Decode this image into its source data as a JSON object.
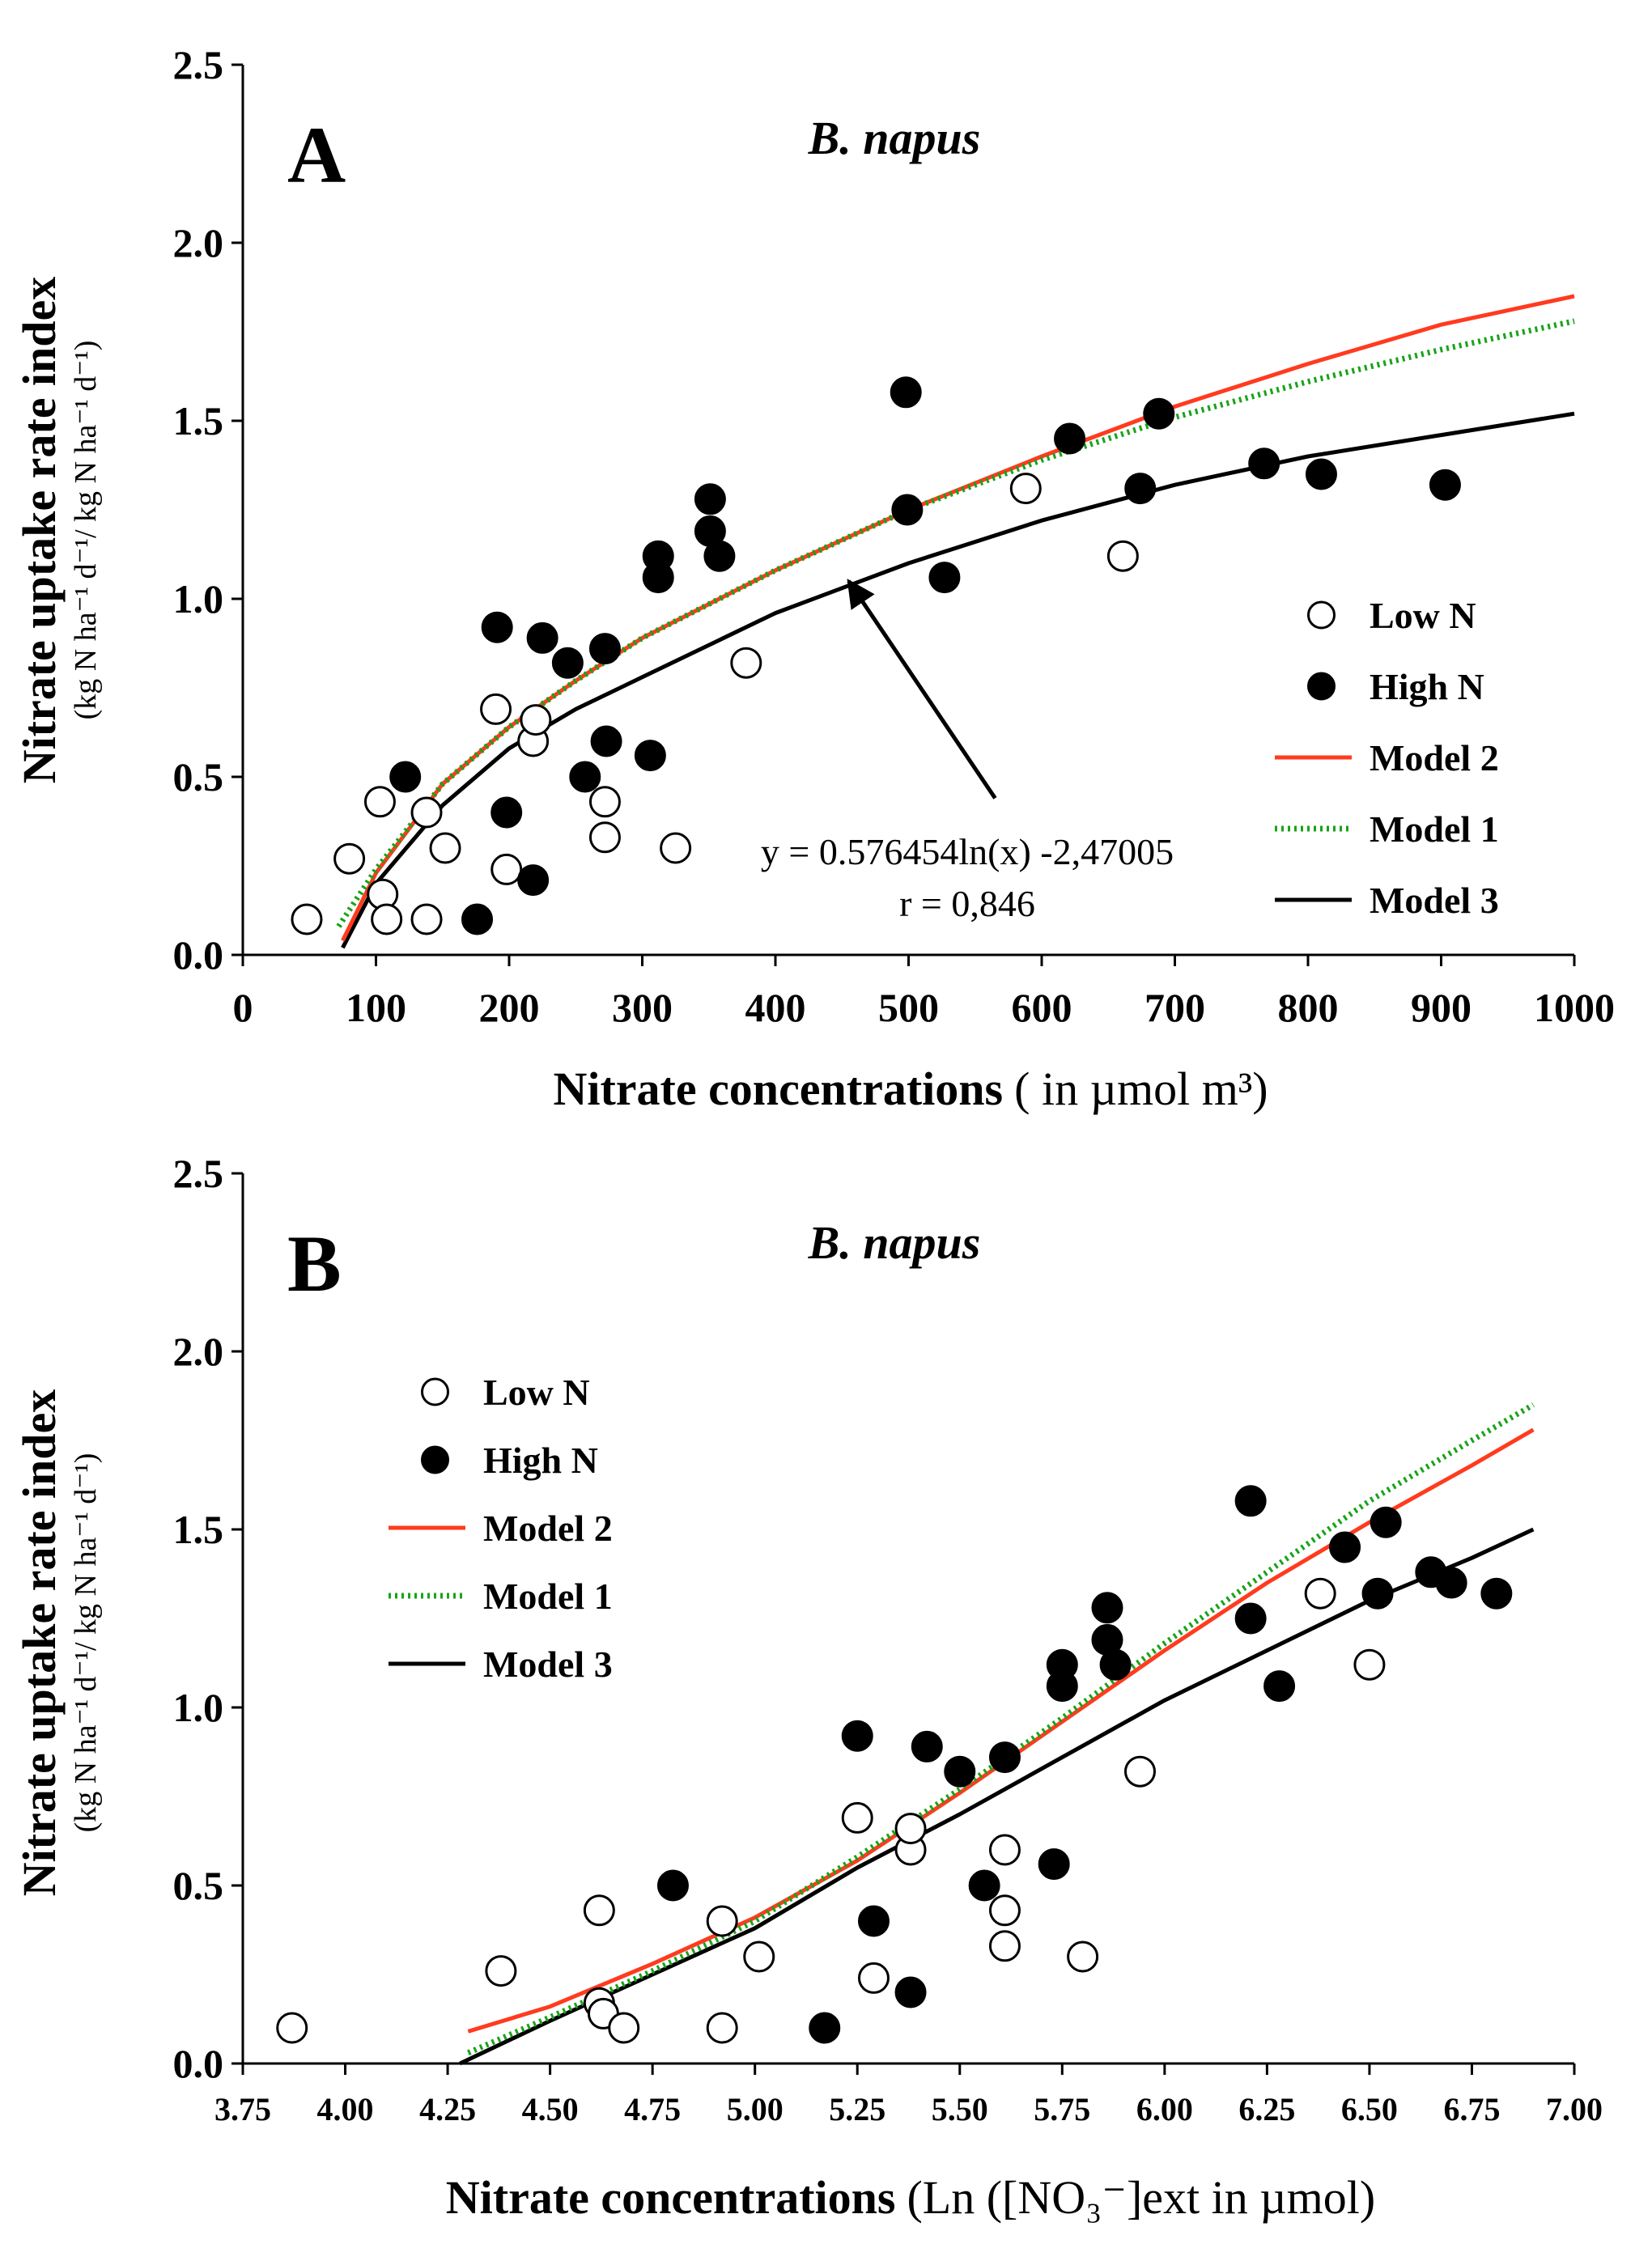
{
  "colors": {
    "model2": "#ff3b1f",
    "model1": "#19a319",
    "model3": "#000000",
    "high_marker": "#000000",
    "low_marker_fill": "#ffffff"
  },
  "chart_data": [
    {
      "type": "scatter",
      "panel_label": "A",
      "title": "B. napus",
      "xlabel": "Nitrate concentrations",
      "xlabel_units": "( in µmol m³)",
      "ylabel": "Nitrate uptake rate index",
      "ylabel_units": "(kg N ha⁻¹ d⁻¹/ kg N ha⁻¹ d⁻¹)",
      "xlim": [
        0,
        1000
      ],
      "ylim": [
        0,
        2.5
      ],
      "xticks": [
        0,
        100,
        200,
        300,
        400,
        500,
        600,
        700,
        800,
        900,
        1000
      ],
      "xtick_labels": [
        "0",
        "100",
        "200",
        "300",
        "400",
        "500",
        "600",
        "700",
        "800",
        "900",
        "1000"
      ],
      "yticks": [
        0,
        0.5,
        1.0,
        1.5,
        2.0,
        2.5
      ],
      "ytick_labels": [
        "0.0",
        "0.5",
        "1.0",
        "1.5",
        "2.0",
        "2.5"
      ],
      "legend_position": "center-right",
      "legend": [
        {
          "key": "low",
          "label": "Low N",
          "kind": "open-circle"
        },
        {
          "key": "high",
          "label": "High N",
          "kind": "filled-circle"
        },
        {
          "key": "model2",
          "label": "Model 2",
          "kind": "line"
        },
        {
          "key": "model1",
          "label": "Model 1",
          "kind": "dotted-line"
        },
        {
          "key": "model3",
          "label": "Model 3",
          "kind": "line"
        }
      ],
      "annotation": {
        "equation": "y = 0.576454ln(x) -2,47005",
        "r": "r = 0,846",
        "arrow_from": [
          565,
          0.44
        ],
        "arrow_to": [
          455,
          1.05
        ]
      },
      "series": [
        {
          "name": "Low N",
          "kind": "scatter",
          "style": "open",
          "points": [
            [
              48,
              0.1
            ],
            [
              80,
              0.27
            ],
            [
              103,
              0.43
            ],
            [
              105,
              0.17
            ],
            [
              108,
              0.1
            ],
            [
              138,
              0.4
            ],
            [
              138,
              0.1
            ],
            [
              152,
              0.3
            ],
            [
              190,
              0.69
            ],
            [
              198,
              0.24
            ],
            [
              218,
              0.6
            ],
            [
              220,
              0.66
            ],
            [
              272,
              0.43
            ],
            [
              272,
              0.33
            ],
            [
              325,
              0.3
            ],
            [
              378,
              0.82
            ],
            [
              588,
              1.31
            ],
            [
              661,
              1.12
            ]
          ]
        },
        {
          "name": "High N",
          "kind": "scatter",
          "style": "filled",
          "points": [
            [
              122,
              0.5
            ],
            [
              176,
              0.1
            ],
            [
              191,
              0.92
            ],
            [
              198,
              0.4
            ],
            [
              218,
              0.21
            ],
            [
              225,
              0.89
            ],
            [
              244,
              0.82
            ],
            [
              257,
              0.5
            ],
            [
              272,
              0.86
            ],
            [
              273,
              0.6
            ],
            [
              306,
              0.56
            ],
            [
              312,
              1.12
            ],
            [
              312,
              1.06
            ],
            [
              351,
              1.28
            ],
            [
              351,
              1.19
            ],
            [
              358,
              1.12
            ],
            [
              498,
              1.58
            ],
            [
              499,
              1.25
            ],
            [
              527,
              1.06
            ],
            [
              621,
              1.45
            ],
            [
              674,
              1.31
            ],
            [
              688,
              1.52
            ],
            [
              767,
              1.38
            ],
            [
              810,
              1.35
            ],
            [
              903,
              1.32
            ]
          ]
        },
        {
          "name": "Model 2",
          "kind": "line",
          "style": "solid",
          "points": [
            [
              75,
              0.04
            ],
            [
              100,
              0.23
            ],
            [
              150,
              0.48
            ],
            [
              200,
              0.64
            ],
            [
              250,
              0.77
            ],
            [
              300,
              0.89
            ],
            [
              400,
              1.08
            ],
            [
              500,
              1.25
            ],
            [
              600,
              1.4
            ],
            [
              700,
              1.54
            ],
            [
              800,
              1.66
            ],
            [
              900,
              1.77
            ],
            [
              1000,
              1.85
            ]
          ]
        },
        {
          "name": "Model 1",
          "kind": "line",
          "style": "dotted",
          "points": [
            [
              72,
              0.08
            ],
            [
              100,
              0.24
            ],
            [
              150,
              0.48
            ],
            [
              200,
              0.64
            ],
            [
              250,
              0.77
            ],
            [
              300,
              0.89
            ],
            [
              400,
              1.08
            ],
            [
              500,
              1.25
            ],
            [
              600,
              1.39
            ],
            [
              700,
              1.51
            ],
            [
              800,
              1.61
            ],
            [
              900,
              1.7
            ],
            [
              1000,
              1.78
            ]
          ]
        },
        {
          "name": "Model 3",
          "kind": "line",
          "style": "solid",
          "points": [
            [
              75,
              0.02
            ],
            [
              100,
              0.2
            ],
            [
              150,
              0.42
            ],
            [
              200,
              0.58
            ],
            [
              250,
              0.69
            ],
            [
              300,
              0.78
            ],
            [
              400,
              0.96
            ],
            [
              500,
              1.1
            ],
            [
              600,
              1.22
            ],
            [
              700,
              1.32
            ],
            [
              800,
              1.4
            ],
            [
              900,
              1.46
            ],
            [
              1000,
              1.52
            ]
          ]
        }
      ]
    },
    {
      "type": "scatter",
      "panel_label": "B",
      "title": "B. napus",
      "xlabel": "Nitrate concentrations",
      "xlabel_units": "(Ln ([NO₃⁻]ext in µmol)",
      "ylabel": "Nitrate uptake rate index",
      "ylabel_units": "(kg N ha⁻¹ d⁻¹/ kg N ha⁻¹ d⁻¹)",
      "xlim": [
        3.75,
        7.0
      ],
      "ylim": [
        0,
        2.5
      ],
      "xticks": [
        3.75,
        4.0,
        4.25,
        4.5,
        4.75,
        5.0,
        5.25,
        5.5,
        5.75,
        6.0,
        6.25,
        6.5,
        6.75,
        7.0
      ],
      "xtick_labels": [
        "3.75",
        "4.00",
        "4.25",
        "4.50",
        "4.75",
        "5.00",
        "5.25",
        "5.50",
        "5.75",
        "6.00",
        "6.25",
        "6.50",
        "6.75",
        "7.00"
      ],
      "yticks": [
        0,
        0.5,
        1.0,
        1.5,
        2.0,
        2.5
      ],
      "ytick_labels": [
        "0.0",
        "0.5",
        "1.0",
        "1.5",
        "2.0",
        "2.5"
      ],
      "legend_position": "upper-left",
      "legend": [
        {
          "key": "low",
          "label": "Low N",
          "kind": "open-circle"
        },
        {
          "key": "high",
          "label": "High N",
          "kind": "filled-circle"
        },
        {
          "key": "model2",
          "label": "Model 2",
          "kind": "line"
        },
        {
          "key": "model1",
          "label": "Model 1",
          "kind": "dotted-line"
        },
        {
          "key": "model3",
          "label": "Model 3",
          "kind": "line"
        }
      ],
      "series": [
        {
          "name": "Low N",
          "kind": "scatter",
          "style": "open",
          "points": [
            [
              3.87,
              0.1
            ],
            [
              4.38,
              0.26
            ],
            [
              4.62,
              0.43
            ],
            [
              4.62,
              0.17
            ],
            [
              4.63,
              0.14
            ],
            [
              4.68,
              0.1
            ],
            [
              4.92,
              0.4
            ],
            [
              4.92,
              0.1
            ],
            [
              5.01,
              0.3
            ],
            [
              5.25,
              0.69
            ],
            [
              5.29,
              0.24
            ],
            [
              5.38,
              0.6
            ],
            [
              5.38,
              0.66
            ],
            [
              5.61,
              0.6
            ],
            [
              5.61,
              0.43
            ],
            [
              5.61,
              0.33
            ],
            [
              5.8,
              0.3
            ],
            [
              5.94,
              0.82
            ],
            [
              6.38,
              1.32
            ],
            [
              6.5,
              1.12
            ]
          ]
        },
        {
          "name": "High N",
          "kind": "scatter",
          "style": "filled",
          "points": [
            [
              4.8,
              0.5
            ],
            [
              5.17,
              0.1
            ],
            [
              5.25,
              0.92
            ],
            [
              5.29,
              0.4
            ],
            [
              5.38,
              0.2
            ],
            [
              5.42,
              0.89
            ],
            [
              5.5,
              0.82
            ],
            [
              5.56,
              0.5
            ],
            [
              5.61,
              0.86
            ],
            [
              5.73,
              0.56
            ],
            [
              5.75,
              1.12
            ],
            [
              5.75,
              1.06
            ],
            [
              5.86,
              1.28
            ],
            [
              5.86,
              1.19
            ],
            [
              5.88,
              1.12
            ],
            [
              6.21,
              1.58
            ],
            [
              6.21,
              1.25
            ],
            [
              6.28,
              1.06
            ],
            [
              6.44,
              1.45
            ],
            [
              6.52,
              1.32
            ],
            [
              6.54,
              1.52
            ],
            [
              6.65,
              1.38
            ],
            [
              6.7,
              1.35
            ],
            [
              6.81,
              1.32
            ]
          ]
        },
        {
          "name": "Model 2",
          "kind": "line",
          "style": "solid",
          "points": [
            [
              4.3,
              0.09
            ],
            [
              4.5,
              0.16
            ],
            [
              4.75,
              0.28
            ],
            [
              5.0,
              0.41
            ],
            [
              5.25,
              0.57
            ],
            [
              5.5,
              0.76
            ],
            [
              5.75,
              0.96
            ],
            [
              6.0,
              1.16
            ],
            [
              6.25,
              1.35
            ],
            [
              6.5,
              1.52
            ],
            [
              6.75,
              1.68
            ],
            [
              6.9,
              1.78
            ]
          ]
        },
        {
          "name": "Model 1",
          "kind": "line",
          "style": "dotted",
          "points": [
            [
              4.3,
              0.03
            ],
            [
              4.5,
              0.13
            ],
            [
              4.75,
              0.26
            ],
            [
              5.0,
              0.4
            ],
            [
              5.25,
              0.58
            ],
            [
              5.5,
              0.77
            ],
            [
              5.75,
              0.97
            ],
            [
              6.0,
              1.18
            ],
            [
              6.25,
              1.38
            ],
            [
              6.5,
              1.58
            ],
            [
              6.75,
              1.75
            ],
            [
              6.9,
              1.85
            ]
          ]
        },
        {
          "name": "Model 3",
          "kind": "line",
          "style": "solid",
          "points": [
            [
              4.28,
              0.0
            ],
            [
              4.5,
              0.12
            ],
            [
              4.75,
              0.25
            ],
            [
              5.0,
              0.38
            ],
            [
              5.25,
              0.55
            ],
            [
              5.5,
              0.7
            ],
            [
              5.75,
              0.86
            ],
            [
              6.0,
              1.02
            ],
            [
              6.25,
              1.16
            ],
            [
              6.5,
              1.3
            ],
            [
              6.75,
              1.42
            ],
            [
              6.9,
              1.5
            ]
          ]
        }
      ]
    }
  ]
}
